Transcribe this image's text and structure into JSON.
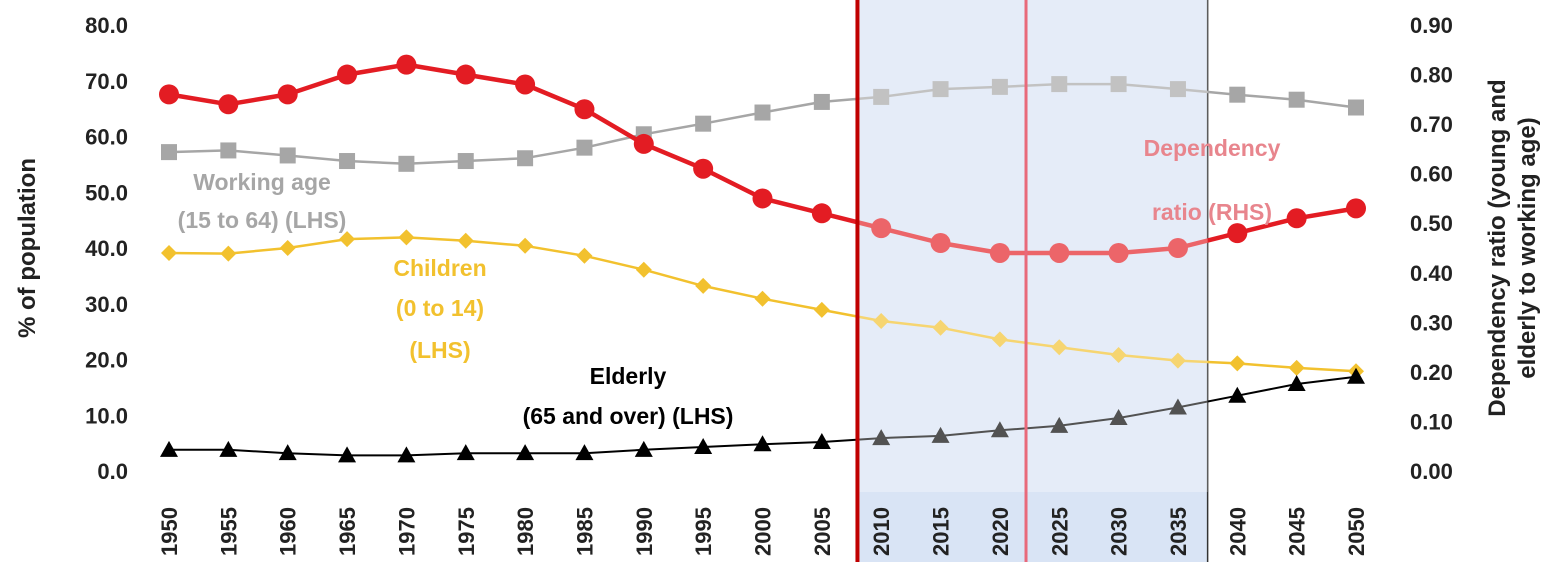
{
  "chart_data": {
    "type": "line",
    "x": [
      1950,
      1955,
      1960,
      1965,
      1970,
      1975,
      1980,
      1985,
      1990,
      1995,
      2000,
      2005,
      2010,
      2015,
      2020,
      2025,
      2030,
      2035,
      2040,
      2045,
      2050
    ],
    "left_axis": {
      "title": "% of population",
      "ylim": [
        0,
        80
      ],
      "ticks": [
        "0.0",
        "10.0",
        "20.0",
        "30.0",
        "40.0",
        "50.0",
        "60.0",
        "70.0",
        "80.0"
      ]
    },
    "right_axis": {
      "title_line1": "Dependency ratio (young and",
      "title_line2": "elderly to working age)",
      "ylim": [
        0,
        0.9
      ],
      "ticks": [
        "0.00",
        "0.10",
        "0.20",
        "0.30",
        "0.40",
        "0.50",
        "0.60",
        "0.70",
        "0.80",
        "0.90"
      ]
    },
    "series": [
      {
        "key": "working",
        "axis": "left",
        "color": "#a6a6a6",
        "marker": "square",
        "values": [
          57.2,
          57.5,
          56.6,
          55.6,
          55.1,
          55.6,
          56.1,
          58.0,
          60.4,
          62.3,
          64.3,
          66.2,
          67.1,
          68.5,
          68.9,
          69.4,
          69.4,
          68.5,
          67.5,
          66.6,
          65.2
        ]
      },
      {
        "key": "children",
        "axis": "left",
        "color": "#f2c12e",
        "marker": "diamond",
        "values": [
          39.1,
          39.0,
          40.0,
          41.6,
          41.9,
          41.3,
          40.4,
          38.6,
          36.1,
          33.2,
          30.9,
          28.9,
          26.9,
          25.7,
          23.6,
          22.2,
          20.8,
          19.8,
          19.3,
          18.5,
          17.9
        ]
      },
      {
        "key": "elderly",
        "axis": "left",
        "color": "#000000",
        "marker": "triangle",
        "values": [
          3.8,
          3.8,
          3.2,
          2.8,
          2.8,
          3.2,
          3.2,
          3.2,
          3.8,
          4.3,
          4.8,
          5.2,
          5.9,
          6.3,
          7.3,
          8.1,
          9.5,
          11.4,
          13.5,
          15.6,
          16.9
        ]
      },
      {
        "key": "dependency",
        "axis": "right",
        "color": "#e31c23",
        "marker": "circle",
        "values": [
          0.76,
          0.74,
          0.76,
          0.8,
          0.82,
          0.8,
          0.78,
          0.73,
          0.66,
          0.61,
          0.55,
          0.52,
          0.49,
          0.46,
          0.44,
          0.44,
          0.44,
          0.45,
          0.48,
          0.51,
          0.53
        ]
      }
    ],
    "annotations": {
      "working": [
        "Working age",
        "(15 to 64) (LHS)"
      ],
      "children": [
        "Children",
        "(0 to 14)",
        "(LHS)"
      ],
      "elderly": [
        "Elderly",
        "(65 and over) (LHS)"
      ],
      "dependency_a": "Dependency",
      "dependency_b": "ratio (RHS)"
    },
    "shaded_region": {
      "from": 2008,
      "to": 2037.5,
      "color": "#d9e4f5"
    },
    "vertical_markers": [
      {
        "x": 2008,
        "color": "#c00000"
      },
      {
        "x": 2022.2,
        "color": "#e8697a"
      }
    ],
    "grid": false,
    "legend": "none"
  }
}
